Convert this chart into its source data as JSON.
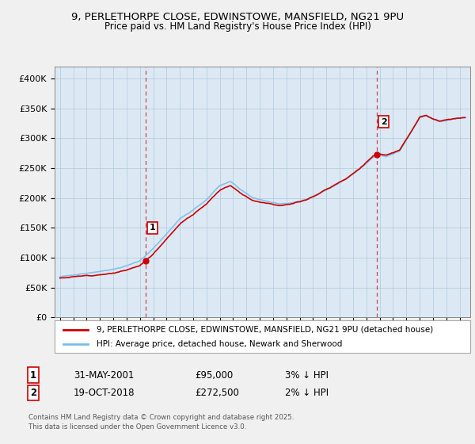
{
  "title_line1": "9, PERLETHORPE CLOSE, EDWINSTOWE, MANSFIELD, NG21 9PU",
  "title_line2": "Price paid vs. HM Land Registry's House Price Index (HPI)",
  "legend_line1": "9, PERLETHORPE CLOSE, EDWINSTOWE, MANSFIELD, NG21 9PU (detached house)",
  "legend_line2": "HPI: Average price, detached house, Newark and Sherwood",
  "sale1_date": "31-MAY-2001",
  "sale1_price": "£95,000",
  "sale1_hpi": "3% ↓ HPI",
  "sale2_date": "19-OCT-2018",
  "sale2_price": "£272,500",
  "sale2_hpi": "2% ↓ HPI",
  "footer": "Contains HM Land Registry data © Crown copyright and database right 2025.\nThis data is licensed under the Open Government Licence v3.0.",
  "hpi_color": "#7abde8",
  "price_color": "#cc0000",
  "vline_color": "#cc0000",
  "background_color": "#f0f0f0",
  "plot_bg_color": "#dce9f5",
  "ylim": [
    0,
    420000
  ],
  "yticks": [
    0,
    50000,
    100000,
    150000,
    200000,
    250000,
    300000,
    350000,
    400000
  ],
  "sale1_year": 2001.42,
  "sale2_year": 2018.8,
  "sale1_price_val": 95000,
  "sale2_price_val": 272500
}
